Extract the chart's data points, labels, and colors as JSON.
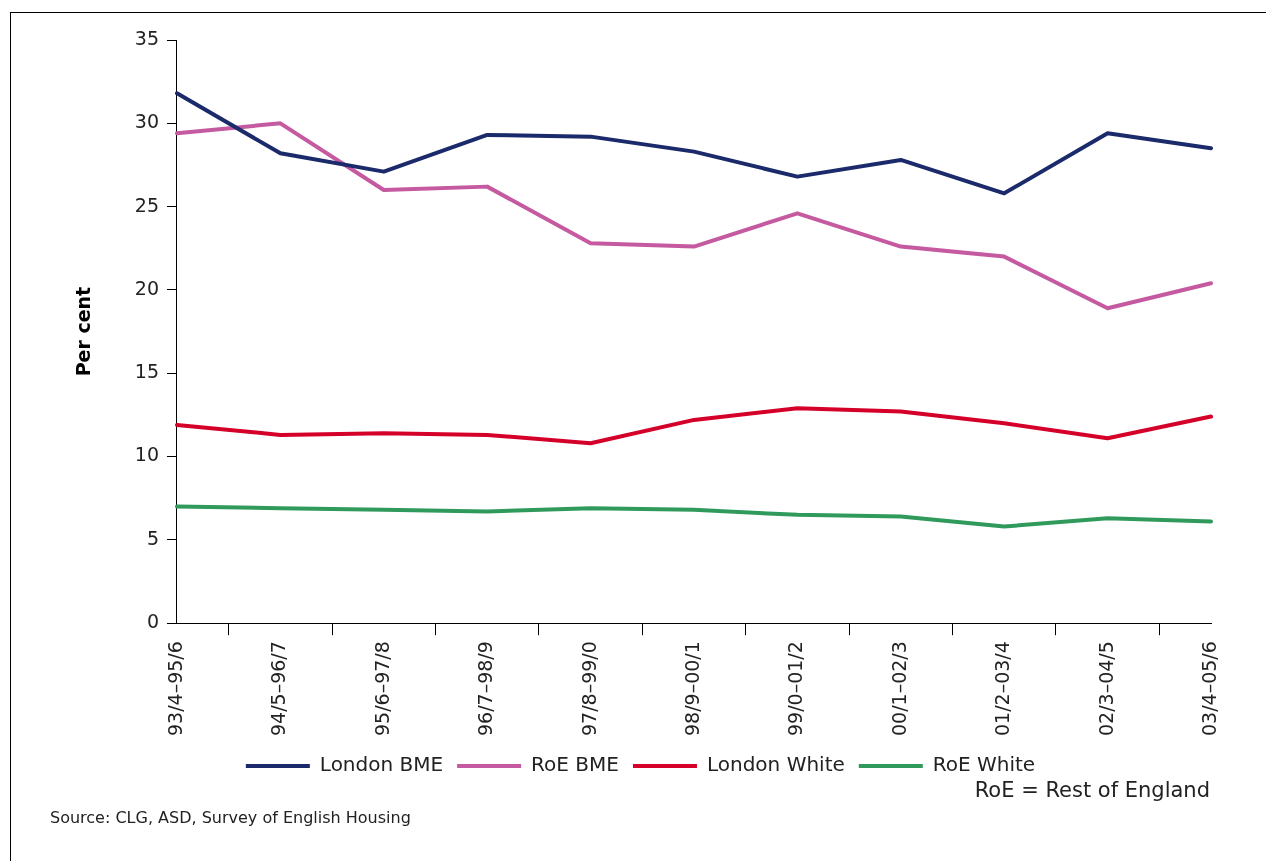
{
  "chart_data": {
    "type": "line",
    "ylabel": "Per cent",
    "categories": [
      "93/4–95/6",
      "94/5–96/7",
      "95/6–97/8",
      "96/7–98/9",
      "97/8–99/0",
      "98/9–00/1",
      "99/0–01/2",
      "00/1–02/3",
      "01/2–03/4",
      "02/3–04/5",
      "03/4–05/6"
    ],
    "series": [
      {
        "name": "London BME",
        "color": "#1b2a6b",
        "values": [
          31.8,
          28.2,
          27.1,
          29.3,
          29.2,
          28.3,
          26.8,
          27.8,
          25.8,
          29.4,
          28.5
        ]
      },
      {
        "name": "RoE BME",
        "color": "#c55aa0",
        "values": [
          29.4,
          30.0,
          26.0,
          26.2,
          22.8,
          22.6,
          24.6,
          22.6,
          22.0,
          18.9,
          20.4
        ]
      },
      {
        "name": "London White",
        "color": "#d5002a",
        "values": [
          11.9,
          11.3,
          11.4,
          11.3,
          10.8,
          12.2,
          12.9,
          12.7,
          12.0,
          11.1,
          12.4
        ]
      },
      {
        "name": "RoE White",
        "color": "#2f9a5b",
        "values": [
          7.0,
          6.9,
          6.8,
          6.7,
          6.9,
          6.8,
          6.5,
          6.4,
          5.8,
          6.3,
          6.1
        ]
      }
    ],
    "ylim": [
      0,
      35
    ],
    "yticks": [
      0,
      5,
      10,
      15,
      20,
      25,
      30,
      35
    ],
    "grid": false,
    "legend": "bottom",
    "marker": "none",
    "line_style": "solid",
    "annotations": [
      "RoE = Rest of England",
      "Source: CLG, ASD, Survey of English Housing"
    ]
  }
}
